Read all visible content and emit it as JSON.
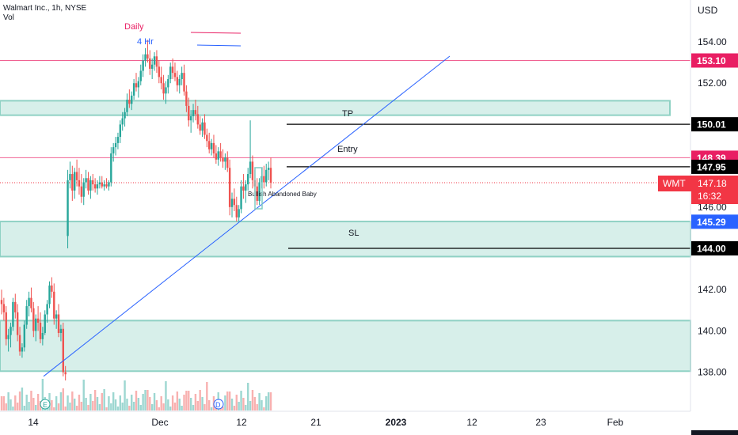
{
  "header": {
    "symbol_line": "Walmart Inc., 1h, NYSE",
    "volume_label": "Vol"
  },
  "price_axis": {
    "unit": "USD",
    "ticks": [
      "154.00",
      "152.00",
      "146.00",
      "142.00",
      "140.00",
      "138.00"
    ]
  },
  "time_axis": {
    "ticks": [
      "14",
      "Dec",
      "12",
      "21",
      "2023",
      "12",
      "23",
      "Feb"
    ]
  },
  "legend": {
    "daily_label": "Daily",
    "daily_color": "#e91e63",
    "h4_label": "4 Hr",
    "h4_color": "#2962ff"
  },
  "annotations": {
    "tp": "TP",
    "entry": "Entry",
    "sl": "SL",
    "pattern": "Bullish Abandoned Baby"
  },
  "price_tags": [
    {
      "label": "153.10",
      "price": 153.1,
      "bg": "#e91e63",
      "fg": "#ffffff"
    },
    {
      "label": "150.01",
      "price": 150.01,
      "bg": "#000000",
      "fg": "#ffffff"
    },
    {
      "label": "148.39",
      "price": 148.39,
      "bg": "#e91e63",
      "fg": "#ffffff"
    },
    {
      "label": "147.95",
      "price": 147.95,
      "bg": "#000000",
      "fg": "#ffffff"
    },
    {
      "label": "145.29",
      "price": 145.29,
      "bg": "#2962ff",
      "fg": "#ffffff"
    },
    {
      "label": "144.00",
      "price": 144.0,
      "bg": "#000000",
      "fg": "#ffffff"
    }
  ],
  "current_price": {
    "ticker": "WMT",
    "price": "147.18",
    "countdown": "16:32",
    "value": 147.18,
    "bg": "#f23645"
  },
  "colors": {
    "zone_fill": "#d7efea",
    "zone_border": "#8fd1c4",
    "up_candle": "#26a69a",
    "down_candle": "#ef5350",
    "trendline": "#2962ff",
    "daily_level": "#f06292"
  },
  "chart_data": {
    "type": "candlestick",
    "timeframe": "1h",
    "ylim": [
      136.5,
      155.2
    ],
    "horizontal_levels": [
      {
        "price": 153.1,
        "kind": "daily"
      },
      {
        "price": 148.39,
        "kind": "daily"
      },
      {
        "price": 150.01,
        "kind": "TP"
      },
      {
        "price": 147.95,
        "kind": "Entry"
      },
      {
        "price": 144.0,
        "kind": "SL"
      }
    ],
    "zones": [
      {
        "top": 151.15,
        "bottom": 150.45
      },
      {
        "top": 145.3,
        "bottom": 143.6
      },
      {
        "top": 140.5,
        "bottom": 138.05
      }
    ],
    "candles": [
      [
        141.5,
        142.0,
        140.8,
        141.3
      ],
      [
        141.3,
        141.6,
        140.5,
        140.9
      ],
      [
        140.9,
        141.2,
        139.3,
        139.6
      ],
      [
        139.6,
        140.1,
        139.0,
        139.8
      ],
      [
        139.8,
        140.4,
        139.2,
        140.2
      ],
      [
        140.2,
        141.6,
        140.0,
        141.4
      ],
      [
        141.4,
        141.8,
        140.6,
        140.9
      ],
      [
        140.9,
        141.3,
        139.5,
        139.8
      ],
      [
        139.8,
        140.2,
        138.8,
        139.0
      ],
      [
        139.0,
        139.4,
        138.7,
        139.2
      ],
      [
        139.2,
        140.5,
        139.0,
        140.3
      ],
      [
        140.3,
        141.5,
        140.1,
        141.2
      ],
      [
        141.2,
        141.9,
        140.7,
        141.6
      ],
      [
        141.6,
        142.1,
        140.9,
        141.1
      ],
      [
        141.1,
        141.4,
        139.7,
        140.0
      ],
      [
        140.0,
        140.8,
        139.5,
        140.6
      ],
      [
        140.6,
        141.2,
        140.0,
        140.4
      ],
      [
        140.4,
        140.9,
        139.4,
        139.6
      ],
      [
        139.6,
        140.2,
        139.3,
        139.9
      ],
      [
        139.9,
        141.0,
        139.8,
        140.8
      ],
      [
        140.8,
        141.5,
        140.4,
        141.3
      ],
      [
        141.3,
        142.4,
        141.1,
        142.2
      ],
      [
        142.2,
        142.6,
        141.6,
        141.9
      ],
      [
        141.9,
        142.3,
        140.3,
        140.6
      ],
      [
        140.6,
        141.0,
        140.1,
        140.8
      ],
      [
        140.8,
        141.3,
        139.7,
        139.9
      ],
      [
        139.9,
        140.3,
        139.5,
        140.1
      ],
      [
        140.1,
        140.4,
        137.8,
        138.0
      ],
      [
        138.0,
        138.3,
        137.6,
        137.9
      ],
      [
        144.6,
        147.8,
        144.0,
        147.3
      ],
      [
        147.3,
        148.2,
        146.9,
        147.6
      ],
      [
        147.6,
        148.0,
        146.3,
        146.8
      ],
      [
        146.8,
        147.9,
        146.4,
        147.7
      ],
      [
        147.7,
        148.3,
        147.0,
        147.3
      ],
      [
        147.3,
        147.9,
        146.6,
        147.0
      ],
      [
        147.0,
        147.6,
        146.2,
        146.5
      ],
      [
        146.5,
        147.4,
        146.1,
        147.2
      ],
      [
        147.2,
        147.8,
        146.9,
        147.4
      ],
      [
        147.4,
        147.7,
        146.6,
        146.8
      ],
      [
        146.8,
        147.5,
        146.4,
        147.3
      ],
      [
        147.3,
        147.6,
        146.8,
        147.1
      ],
      [
        147.1,
        147.4,
        146.7,
        146.9
      ],
      [
        146.9,
        147.3,
        146.6,
        147.1
      ],
      [
        147.1,
        147.5,
        146.9,
        147.2
      ],
      [
        147.2,
        147.5,
        146.9,
        147.0
      ],
      [
        147.0,
        147.3,
        146.8,
        147.1
      ],
      [
        147.1,
        147.4,
        146.9,
        147.0
      ],
      [
        147.0,
        147.3,
        146.8,
        147.2
      ],
      [
        147.2,
        148.9,
        147.0,
        148.6
      ],
      [
        148.6,
        149.1,
        148.2,
        148.9
      ],
      [
        148.9,
        149.4,
        148.5,
        149.1
      ],
      [
        149.1,
        149.6,
        148.8,
        149.4
      ],
      [
        149.4,
        150.2,
        149.1,
        150.0
      ],
      [
        150.0,
        150.6,
        149.7,
        150.3
      ],
      [
        150.3,
        150.8,
        149.9,
        150.6
      ],
      [
        150.6,
        151.5,
        150.4,
        151.2
      ],
      [
        151.2,
        151.7,
        150.8,
        151.0
      ],
      [
        151.0,
        151.6,
        150.7,
        151.4
      ],
      [
        151.4,
        152.2,
        151.2,
        152.0
      ],
      [
        152.0,
        152.5,
        151.6,
        151.8
      ],
      [
        151.8,
        152.3,
        151.3,
        152.1
      ],
      [
        152.1,
        152.9,
        151.9,
        152.6
      ],
      [
        152.6,
        153.4,
        152.3,
        153.1
      ],
      [
        153.1,
        153.7,
        152.8,
        153.4
      ],
      [
        153.4,
        154.1,
        153.0,
        153.2
      ],
      [
        153.2,
        153.6,
        152.4,
        152.7
      ],
      [
        152.7,
        153.2,
        152.2,
        152.9
      ],
      [
        152.9,
        153.5,
        152.6,
        153.3
      ],
      [
        153.3,
        153.6,
        152.5,
        152.8
      ],
      [
        152.8,
        153.1,
        152.0,
        152.3
      ],
      [
        152.3,
        152.8,
        151.7,
        152.0
      ],
      [
        152.0,
        152.4,
        151.2,
        151.5
      ],
      [
        151.5,
        152.1,
        151.0,
        151.8
      ],
      [
        151.8,
        152.4,
        151.5,
        152.2
      ],
      [
        152.2,
        153.0,
        152.0,
        152.8
      ],
      [
        152.8,
        153.2,
        152.2,
        152.5
      ],
      [
        152.5,
        153.0,
        152.1,
        152.3
      ],
      [
        152.3,
        152.6,
        151.6,
        151.9
      ],
      [
        151.9,
        152.4,
        151.5,
        152.2
      ],
      [
        152.2,
        152.8,
        151.9,
        152.5
      ],
      [
        152.5,
        152.9,
        151.4,
        151.6
      ],
      [
        151.6,
        151.9,
        150.6,
        150.9
      ],
      [
        150.9,
        151.3,
        149.9,
        150.2
      ],
      [
        150.2,
        150.7,
        149.6,
        150.4
      ],
      [
        150.4,
        151.0,
        150.1,
        150.7
      ],
      [
        150.7,
        151.2,
        150.2,
        150.5
      ],
      [
        150.5,
        150.9,
        149.8,
        150.0
      ],
      [
        150.0,
        150.4,
        149.5,
        149.7
      ],
      [
        149.7,
        150.3,
        149.4,
        150.1
      ],
      [
        150.1,
        150.5,
        149.3,
        149.5
      ],
      [
        149.5,
        149.8,
        148.9,
        149.2
      ],
      [
        149.2,
        149.6,
        148.6,
        148.8
      ],
      [
        148.8,
        149.3,
        148.5,
        149.1
      ],
      [
        149.1,
        149.5,
        148.4,
        148.6
      ],
      [
        148.6,
        149.0,
        148.1,
        148.3
      ],
      [
        148.3,
        148.9,
        148.0,
        148.7
      ],
      [
        148.7,
        149.1,
        148.2,
        148.4
      ],
      [
        148.4,
        148.8,
        147.9,
        148.2
      ],
      [
        148.2,
        148.6,
        147.8,
        148.4
      ],
      [
        148.4,
        148.7,
        147.7,
        147.9
      ],
      [
        147.9,
        148.3,
        145.6,
        146.0
      ],
      [
        146.0,
        146.7,
        145.5,
        146.4
      ],
      [
        146.4,
        146.9,
        145.8,
        146.1
      ],
      [
        146.1,
        146.5,
        145.3,
        145.5
      ],
      [
        145.5,
        146.1,
        145.3,
        145.9
      ],
      [
        145.9,
        147.3,
        145.7,
        147.0
      ],
      [
        147.0,
        147.6,
        146.4,
        146.8
      ],
      [
        146.8,
        147.3,
        146.2,
        147.1
      ],
      [
        147.1,
        147.9,
        146.8,
        147.6
      ],
      [
        147.6,
        150.2,
        147.4,
        148.2
      ],
      [
        148.2,
        148.5,
        146.9,
        147.3
      ],
      [
        147.3,
        147.8,
        146.6,
        147.0
      ],
      [
        147.0,
        147.4,
        146.1,
        146.3
      ],
      [
        146.3,
        147.4,
        146.1,
        147.2
      ],
      [
        147.2,
        147.9,
        146.9,
        147.5
      ],
      [
        147.5,
        148.0,
        146.9,
        147.2
      ],
      [
        147.2,
        148.1,
        147.0,
        147.8
      ],
      [
        147.8,
        148.2,
        147.3,
        147.9
      ],
      [
        147.9,
        148.4,
        146.9,
        147.18
      ]
    ]
  }
}
